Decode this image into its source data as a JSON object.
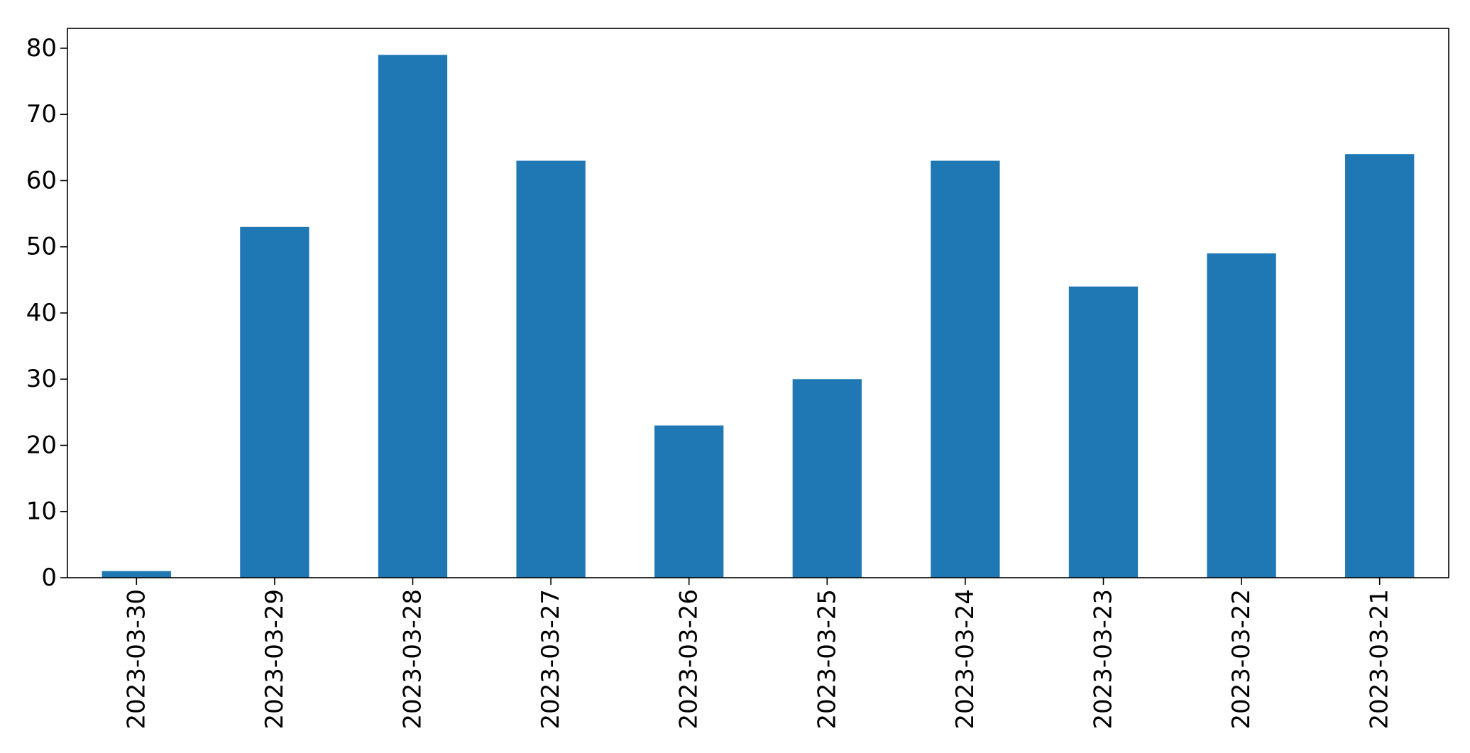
{
  "chart_data": {
    "type": "bar",
    "title": "",
    "xlabel": "",
    "ylabel": "",
    "categories": [
      "2023-03-30",
      "2023-03-29",
      "2023-03-28",
      "2023-03-27",
      "2023-03-26",
      "2023-03-25",
      "2023-03-24",
      "2023-03-23",
      "2023-03-22",
      "2023-03-21"
    ],
    "values": [
      1,
      53,
      79,
      63,
      23,
      30,
      63,
      44,
      49,
      64
    ],
    "ylim": [
      0,
      83
    ],
    "yticks": [
      0,
      10,
      20,
      30,
      40,
      50,
      60,
      70,
      80
    ],
    "grid": false,
    "legend": "none",
    "bar_color": "#1f77b4",
    "axis_color": "#000000"
  }
}
